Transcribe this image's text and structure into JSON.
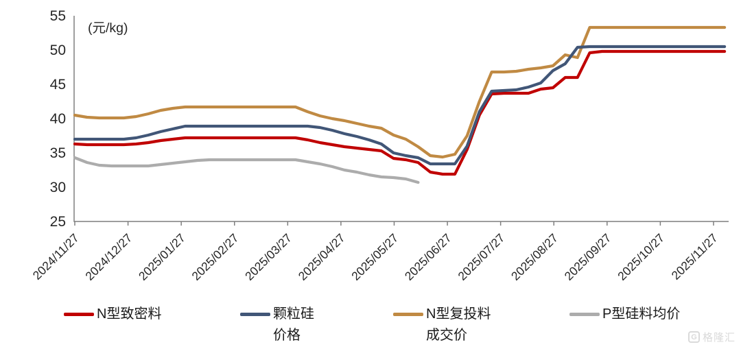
{
  "unit_label": "(元/kg)",
  "watermark": {
    "text": "格隆汇",
    "logo_char": "G"
  },
  "colors": {
    "n_type_dense": "#C00000",
    "granular_si": "#415677",
    "n_type_recharge": "#C08A43",
    "p_type_avg": "#ACACAC",
    "axis": "#7f7f7f",
    "tick_text": "#262626"
  },
  "chart_data": {
    "type": "line",
    "title": "",
    "xlabel": "",
    "ylabel": "(元/kg)",
    "ylim": [
      25,
      55
    ],
    "y_ticks": [
      55,
      50,
      45,
      40,
      35,
      30,
      25
    ],
    "grid": false,
    "legend_position": "bottom",
    "x_tick_labels": [
      "2024/11/27",
      "2024/12/27",
      "2025/01/27",
      "2025/02/27",
      "2025/03/27",
      "2025/04/27",
      "2025/05/27",
      "2025/06/27",
      "2025/07/27",
      "2025/08/27",
      "2025/09/27",
      "2025/10/27",
      "2025/11/27"
    ],
    "x": [
      "2024/11/27",
      "2024/12/04",
      "2024/12/11",
      "2024/12/18",
      "2024/12/25",
      "2025/01/01",
      "2025/01/08",
      "2025/01/15",
      "2025/01/22",
      "2025/01/29",
      "2025/02/05",
      "2025/02/12",
      "2025/02/19",
      "2025/02/26",
      "2025/03/05",
      "2025/03/12",
      "2025/03/19",
      "2025/03/26",
      "2025/04/02",
      "2025/04/09",
      "2025/04/16",
      "2025/04/23",
      "2025/04/30",
      "2025/05/07",
      "2025/05/14",
      "2025/05/21",
      "2025/05/28",
      "2025/06/04",
      "2025/06/11",
      "2025/06/18",
      "2025/06/25",
      "2025/07/02",
      "2025/07/09",
      "2025/07/16",
      "2025/07/23",
      "2025/07/30",
      "2025/08/06",
      "2025/08/13",
      "2025/08/20",
      "2025/08/27",
      "2025/09/03",
      "2025/09/10",
      "2025/09/17",
      "2025/09/24",
      "2025/10/01",
      "2025/10/08",
      "2025/10/15",
      "2025/10/22",
      "2025/10/29",
      "2025/11/05",
      "2025/11/12",
      "2025/11/19",
      "2025/11/26",
      "2025/12/03"
    ],
    "series": [
      {
        "key": "n-type-recharge",
        "name": "N型复投料成交价",
        "color": "#C08A43",
        "values": [
          40.5,
          40.2,
          40.1,
          40.1,
          40.1,
          40.3,
          40.7,
          41.2,
          41.5,
          41.7,
          41.7,
          41.7,
          41.7,
          41.7,
          41.7,
          41.7,
          41.7,
          41.7,
          41.7,
          41.0,
          40.4,
          40.0,
          39.7,
          39.3,
          38.9,
          38.6,
          37.6,
          37.0,
          35.9,
          34.6,
          34.4,
          34.8,
          37.5,
          42.5,
          46.8,
          46.8,
          46.9,
          47.2,
          47.4,
          47.7,
          49.3,
          48.9,
          53.3,
          53.3,
          53.3,
          53.3,
          53.3,
          53.3,
          53.3,
          53.3,
          53.3,
          53.3,
          53.3,
          53.3
        ]
      },
      {
        "key": "p-type-avg",
        "name": "P型硅料均价",
        "color": "#ACACAC",
        "values": [
          34.3,
          33.6,
          33.2,
          33.1,
          33.1,
          33.1,
          33.1,
          33.3,
          33.5,
          33.7,
          33.9,
          34.0,
          34.0,
          34.0,
          34.0,
          34.0,
          34.0,
          34.0,
          34.0,
          33.7,
          33.4,
          33.0,
          32.5,
          32.2,
          31.8,
          31.5,
          31.4,
          31.2,
          30.7,
          null,
          null,
          null,
          null,
          null,
          null,
          null,
          null,
          null,
          null,
          null,
          null,
          null,
          null,
          null,
          null,
          null,
          null,
          null,
          null,
          null,
          null,
          null,
          null,
          null
        ]
      },
      {
        "key": "n-type-dense",
        "name": "N型致密料",
        "color": "#C00000",
        "values": [
          36.3,
          36.2,
          36.2,
          36.2,
          36.2,
          36.3,
          36.5,
          36.8,
          37.0,
          37.2,
          37.2,
          37.2,
          37.2,
          37.2,
          37.2,
          37.2,
          37.2,
          37.2,
          37.2,
          36.9,
          36.5,
          36.2,
          35.9,
          35.7,
          35.5,
          35.3,
          34.2,
          34.0,
          33.6,
          32.2,
          31.9,
          31.9,
          35.5,
          40.5,
          43.6,
          43.7,
          43.7,
          43.7,
          44.3,
          44.5,
          46.0,
          46.0,
          49.6,
          49.8,
          49.8,
          49.8,
          49.8,
          49.8,
          49.8,
          49.8,
          49.8,
          49.8,
          49.8,
          49.8
        ]
      },
      {
        "key": "granular-si",
        "name": "颗粒硅价格",
        "color": "#415677",
        "values": [
          37.0,
          37.0,
          37.0,
          37.0,
          37.0,
          37.2,
          37.6,
          38.1,
          38.5,
          38.9,
          38.9,
          38.9,
          38.9,
          38.9,
          38.9,
          38.9,
          38.9,
          38.9,
          38.9,
          38.9,
          38.7,
          38.3,
          37.8,
          37.4,
          36.9,
          36.3,
          35.0,
          34.6,
          34.3,
          33.4,
          33.4,
          33.4,
          36.0,
          41.0,
          44.0,
          44.1,
          44.2,
          44.6,
          45.2,
          47.0,
          48.0,
          50.4,
          50.5,
          50.5,
          50.5,
          50.5,
          50.5,
          50.5,
          50.5,
          50.5,
          50.5,
          50.5,
          50.5,
          50.5
        ]
      }
    ],
    "legend": [
      {
        "swatch_key": "n-type-dense",
        "color": "#C00000",
        "line1": "N型致密料",
        "line2": ""
      },
      {
        "swatch_key": "granular-si",
        "color": "#415677",
        "line1": "颗粒硅",
        "line2": "价格"
      },
      {
        "swatch_key": "n-type-recharge",
        "color": "#C08A43",
        "line1": "N型复投料",
        "line2": "成交价"
      },
      {
        "swatch_key": "p-type-avg",
        "color": "#ACACAC",
        "line1": "P型硅料均价",
        "line2": ""
      }
    ]
  }
}
